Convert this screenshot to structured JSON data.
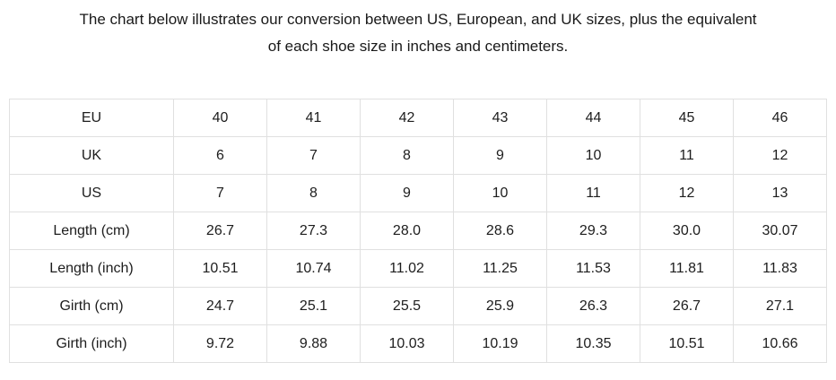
{
  "heading": {
    "line1": "The chart below illustrates our conversion between US, European, and UK sizes, plus the equivalent",
    "line2": "of each shoe size in inches and centimeters."
  },
  "colors": {
    "text": "#1d1d1d",
    "table_border": "#e0e0e0",
    "background": "#ffffff"
  },
  "chart_data": {
    "type": "table",
    "title": "The chart below illustrates our conversion between US, European, and UK sizes, plus the equivalent of each shoe size in inches and centimeters.",
    "row_headers": [
      "EU",
      "UK",
      "US",
      "Length (cm)",
      "Length (inch)",
      "Girth (cm)",
      "Girth (inch)"
    ],
    "rows": [
      {
        "label": "EU",
        "values": [
          "40",
          "41",
          "42",
          "43",
          "44",
          "45",
          "46"
        ]
      },
      {
        "label": "UK",
        "values": [
          "6",
          "7",
          "8",
          "9",
          "10",
          "11",
          "12"
        ]
      },
      {
        "label": "US",
        "values": [
          "7",
          "8",
          "9",
          "10",
          "11",
          "12",
          "13"
        ]
      },
      {
        "label": "Length (cm)",
        "values": [
          "26.7",
          "27.3",
          "28.0",
          "28.6",
          "29.3",
          "30.0",
          "30.07"
        ]
      },
      {
        "label": "Length (inch)",
        "values": [
          "10.51",
          "10.74",
          "11.02",
          "11.25",
          "11.53",
          "11.81",
          "11.83"
        ]
      },
      {
        "label": "Girth (cm)",
        "values": [
          "24.7",
          "25.1",
          "25.5",
          "25.9",
          "26.3",
          "26.7",
          "27.1"
        ]
      },
      {
        "label": "Girth (inch)",
        "values": [
          "9.72",
          "9.88",
          "10.03",
          "10.19",
          "10.35",
          "10.51",
          "10.66"
        ]
      }
    ]
  }
}
